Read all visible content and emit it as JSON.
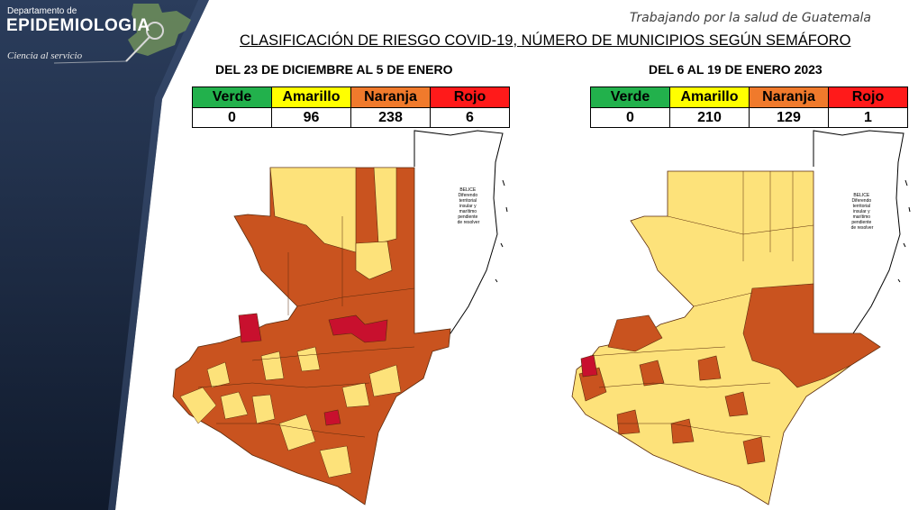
{
  "header": {
    "dept_small": "Departamento de",
    "dept_big": "EPIDEMIOLOGIA",
    "dept_tagline": "Ciencia al servicio",
    "tagline": "Trabajando por la salud de Guatemala",
    "title": "CLASIFICACIÓN DE RIESGO COVID-19, NÚMERO DE MUNICIPIOS SEGÚN  SEMÁFORO"
  },
  "colors": {
    "verde": "#22b14c",
    "amarillo": "#fde27a",
    "naranja": "#c9531f",
    "rojo": "#c8102e",
    "sidebar": "#1b2b45"
  },
  "maps": [
    {
      "period": "DEL 23 DE DICIEMBRE AL 5 DE ENERO",
      "labels": [
        "Verde",
        "Amarillo",
        "Naranja",
        "Rojo"
      ],
      "counts": [
        "0",
        "96",
        "238",
        "6"
      ],
      "belice_label": [
        "BELICE",
        "Diferendo",
        "territorial",
        "insular y",
        "marítimo",
        "pendiente",
        "de resolver"
      ]
    },
    {
      "period": "DEL 6 AL 19 DE ENERO 2023",
      "labels": [
        "Verde",
        "Amarillo",
        "Naranja",
        "Rojo"
      ],
      "counts": [
        "0",
        "210",
        "129",
        "1"
      ],
      "belice_label": [
        "BELICE",
        "Diferendo",
        "territorial",
        "insular y",
        "marítimo",
        "pendiente",
        "de resolver"
      ]
    }
  ]
}
